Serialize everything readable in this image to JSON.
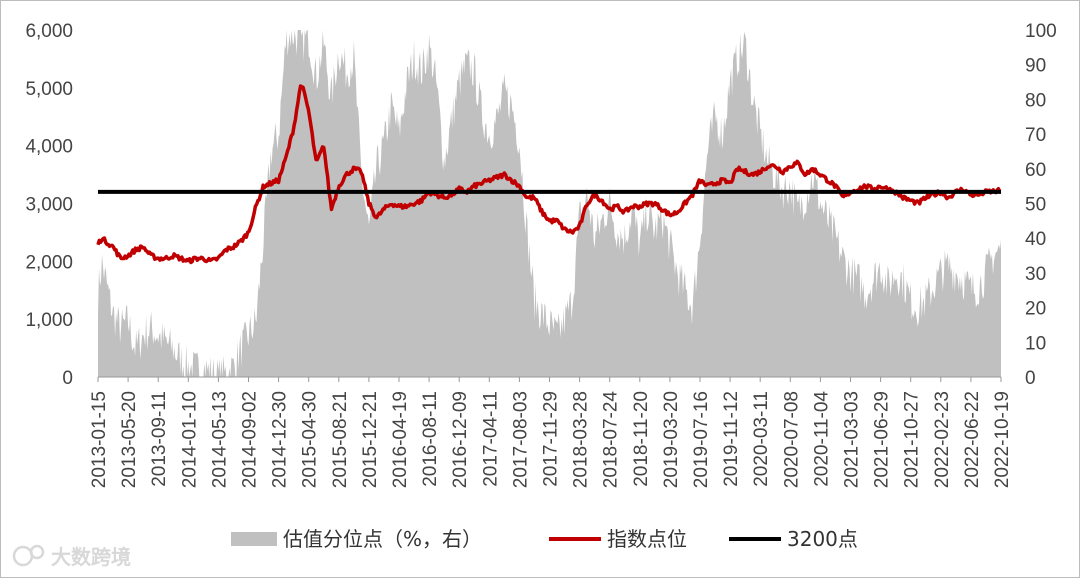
{
  "chart_data": {
    "type": "area+line",
    "x_tick_labels": [
      "2013-01-15",
      "2013-05-20",
      "2013-09-11",
      "2014-01-10",
      "2014-05-13",
      "2014-09-02",
      "2014-12-30",
      "2015-04-30",
      "2015-08-21",
      "2015-12-21",
      "2016-04-19",
      "2016-08-11",
      "2016-12-09",
      "2017-04-11",
      "2017-08-03",
      "2017-11-29",
      "2018-03-28",
      "2018-07-24",
      "2018-11-20",
      "2019-03-20",
      "2019-07-16",
      "2019-11-12",
      "2020-03-11",
      "2020-07-08",
      "2020-11-04",
      "2021-03-03",
      "2021-06-29",
      "2021-10-27",
      "2022-02-23",
      "2022-06-22",
      "2022-10-19"
    ],
    "y_left": {
      "ticks": [
        "0",
        "1,000",
        "2,000",
        "3,000",
        "4,000",
        "5,000",
        "6,000"
      ],
      "range": [
        0,
        6000
      ]
    },
    "y_right": {
      "ticks": [
        "0",
        "10",
        "20",
        "30",
        "40",
        "50",
        "60",
        "70",
        "80",
        "90",
        "100"
      ],
      "range": [
        0,
        100
      ]
    },
    "series": [
      {
        "name": "估值分位点（%，右）",
        "kind": "area",
        "axis": "right",
        "color": "#c0c0c0",
        "x": [
          0,
          0.5,
          1,
          2,
          3,
          4,
          5,
          6,
          7,
          8,
          9,
          10,
          11,
          12,
          13,
          14,
          15,
          16,
          17,
          18,
          19,
          20,
          21,
          22,
          23,
          24,
          25,
          26,
          27,
          28,
          29,
          30,
          31,
          32,
          33,
          34,
          35,
          36,
          37,
          38,
          39,
          40,
          41,
          42,
          43,
          44,
          45,
          46,
          47,
          48,
          49,
          50,
          51,
          52,
          53,
          54,
          55,
          56,
          57,
          58,
          59,
          60,
          61,
          62,
          63,
          64,
          65,
          66,
          67,
          68,
          69,
          70,
          71,
          72,
          73,
          74,
          75,
          76,
          77,
          78,
          79,
          80,
          81,
          82,
          83,
          84,
          85,
          86,
          87,
          88,
          89,
          90,
          91,
          92,
          93,
          94,
          95,
          96,
          97,
          98,
          99,
          100,
          101,
          102,
          103,
          104,
          105,
          106,
          107,
          108,
          109,
          110,
          111,
          112,
          113,
          114,
          115,
          116,
          117,
          118,
          119,
          120
        ],
        "values": [
          24,
          33,
          28,
          18,
          14,
          16,
          8,
          12,
          14,
          12,
          10,
          8,
          5,
          3,
          2,
          3,
          1,
          0,
          1,
          3,
          8,
          12,
          16,
          40,
          65,
          70,
          98,
          99,
          96,
          98,
          86,
          96,
          80,
          94,
          88,
          92,
          58,
          42,
          60,
          67,
          78,
          70,
          84,
          92,
          88,
          95,
          84,
          62,
          74,
          85,
          90,
          88,
          76,
          70,
          74,
          82,
          78,
          68,
          42,
          22,
          18,
          15,
          12,
          16,
          22,
          46,
          52,
          40,
          45,
          50,
          42,
          40,
          48,
          38,
          48,
          42,
          46,
          38,
          30,
          25,
          20,
          40,
          65,
          75,
          70,
          85,
          92,
          96,
          80,
          70,
          62,
          58,
          54,
          55,
          48,
          52,
          58,
          50,
          45,
          40,
          34,
          30,
          28,
          24,
          28,
          32,
          26,
          30,
          28,
          22,
          20,
          22,
          26,
          30,
          32,
          30,
          28,
          25,
          26,
          30,
          35,
          37
        ],
        "noise": 6
      },
      {
        "name": "指数点位",
        "kind": "line",
        "axis": "left",
        "color": "#c00000",
        "x": [
          0,
          0.5,
          1,
          2,
          3,
          4,
          5,
          6,
          7,
          8,
          9,
          10,
          11,
          12,
          13,
          14,
          15,
          16,
          17,
          18,
          19,
          20,
          21,
          22,
          23,
          24,
          25,
          26,
          27,
          28,
          29,
          30,
          31,
          32,
          33,
          34,
          35,
          36,
          37,
          38,
          39,
          40,
          41,
          42,
          43,
          44,
          45,
          46,
          47,
          48,
          49,
          50,
          51,
          52,
          53,
          54,
          55,
          56,
          57,
          58,
          59,
          60,
          61,
          62,
          63,
          64,
          65,
          66,
          67,
          68,
          69,
          70,
          71,
          72,
          73,
          74,
          75,
          76,
          77,
          78,
          79,
          80,
          81,
          82,
          83,
          84,
          85,
          86,
          87,
          88,
          89,
          90,
          91,
          92,
          93,
          94,
          95,
          96,
          97,
          98,
          99,
          100,
          101,
          102,
          103,
          104,
          105,
          106,
          107,
          108,
          109,
          110,
          111,
          112,
          113,
          114,
          115,
          116,
          117,
          118,
          119,
          120
        ],
        "values": [
          2300,
          2400,
          2350,
          2250,
          2050,
          2100,
          2200,
          2250,
          2100,
          2050,
          2050,
          2100,
          2050,
          2000,
          2050,
          2050,
          2000,
          2050,
          2200,
          2250,
          2350,
          2500,
          2950,
          3300,
          3350,
          3400,
          3800,
          4300,
          5100,
          4600,
          3700,
          4000,
          2900,
          3300,
          3500,
          3600,
          3550,
          3000,
          2750,
          2900,
          3000,
          2950,
          2950,
          3000,
          3050,
          3200,
          3150,
          3100,
          3150,
          3250,
          3200,
          3300,
          3350,
          3400,
          3450,
          3500,
          3400,
          3300,
          3100,
          3100,
          2850,
          2700,
          2700,
          2550,
          2500,
          2600,
          3000,
          3150,
          3050,
          2900,
          2950,
          2850,
          2950,
          2950,
          3000,
          3000,
          2900,
          2800,
          2850,
          3000,
          3150,
          3400,
          3300,
          3350,
          3400,
          3350,
          3600,
          3550,
          3500,
          3550,
          3650,
          3650,
          3550,
          3650,
          3700,
          3500,
          3600,
          3500,
          3400,
          3300,
          3100,
          3200,
          3250,
          3300,
          3250,
          3300,
          3250,
          3200,
          3100,
          3050,
          3000,
          3100,
          3150,
          3200,
          3100,
          3200,
          3250,
          3150,
          3150,
          3200,
          3210,
          3220
        ],
        "noise": 40
      },
      {
        "name": "3200点",
        "kind": "hline",
        "axis": "left",
        "value": 3200,
        "color": "#000000"
      }
    ],
    "legend": "bottom"
  },
  "watermark": "大数跨境"
}
